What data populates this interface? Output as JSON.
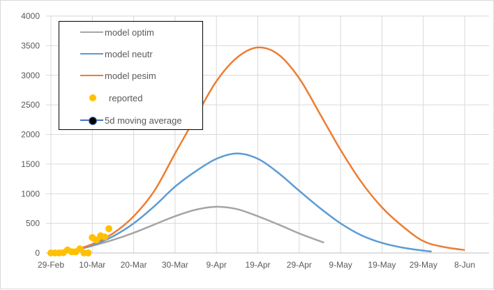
{
  "chart_data": {
    "type": "line",
    "title": "",
    "xlabel": "",
    "ylabel": "",
    "ylim": [
      0,
      4000
    ],
    "yticks": [
      "0",
      "500",
      "1000",
      "1500",
      "2000",
      "2500",
      "3000",
      "3500",
      "4000"
    ],
    "ytick_values": [
      0,
      500,
      1000,
      1500,
      2000,
      2500,
      3000,
      3500,
      4000
    ],
    "x_unit": "days since 29-Feb",
    "xlim": [
      0,
      101
    ],
    "xticks": [
      "29-Feb",
      "10-Mar",
      "20-Mar",
      "30-Mar",
      "9-Apr",
      "19-Apr",
      "29-Apr",
      "9-May",
      "19-May",
      "29-May",
      "8-Jun"
    ],
    "xtick_days": [
      0,
      10,
      20,
      30,
      40,
      50,
      60,
      70,
      80,
      90,
      100
    ],
    "grid": true,
    "legend_position": "top-left",
    "series": [
      {
        "name": "model optim",
        "color": "#a5a5a5",
        "type": "line",
        "x": [
          0,
          5,
          10,
          15,
          20,
          25,
          30,
          35,
          40,
          45,
          50,
          55,
          60,
          65,
          66
        ],
        "y": [
          0,
          35,
          120,
          220,
          340,
          480,
          620,
          730,
          780,
          740,
          620,
          480,
          330,
          200,
          175
        ]
      },
      {
        "name": "model neutr",
        "color": "#5b9bd5",
        "type": "line",
        "x": [
          0,
          5,
          10,
          15,
          20,
          25,
          30,
          35,
          40,
          45,
          50,
          55,
          60,
          65,
          70,
          75,
          80,
          85,
          90,
          92
        ],
        "y": [
          0,
          40,
          130,
          280,
          500,
          790,
          1120,
          1380,
          1590,
          1680,
          1590,
          1350,
          1050,
          760,
          500,
          300,
          170,
          90,
          40,
          25
        ]
      },
      {
        "name": "model pesim",
        "color": "#ed7d31",
        "type": "line",
        "x": [
          0,
          5,
          10,
          15,
          20,
          25,
          30,
          35,
          40,
          45,
          50,
          55,
          60,
          65,
          70,
          75,
          80,
          85,
          90,
          95,
          100
        ],
        "y": [
          0,
          40,
          150,
          330,
          620,
          1050,
          1680,
          2300,
          2900,
          3300,
          3470,
          3350,
          2950,
          2350,
          1740,
          1200,
          770,
          450,
          200,
          100,
          50
        ]
      },
      {
        "name": "reported",
        "color": "#ffc000",
        "type": "scatter",
        "x": [
          0,
          1,
          2,
          3,
          4,
          5,
          6,
          7,
          8,
          9,
          10,
          11,
          12,
          13,
          14
        ],
        "y": [
          0,
          0,
          0,
          5,
          50,
          20,
          20,
          70,
          0,
          0,
          260,
          220,
          290,
          270,
          410
        ]
      },
      {
        "name": "5d moving average",
        "color": "#4472c4",
        "marker_color": "#000000",
        "type": "line",
        "x": [],
        "y": []
      }
    ]
  }
}
